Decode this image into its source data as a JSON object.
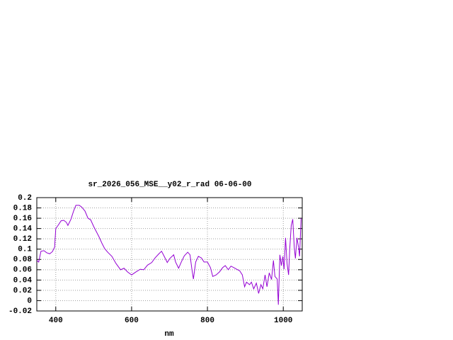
{
  "chart_data": {
    "type": "line",
    "title": "sr_2026_056_MSE__y02_r_rad 06-06-00",
    "xlabel": "nm",
    "xlim": [
      350,
      1050
    ],
    "ylim": [
      -0.02,
      0.2
    ],
    "xticks": [
      400,
      600,
      800,
      1000
    ],
    "yticks": [
      0.2,
      0.18,
      0.16,
      0.14,
      0.12,
      0.1,
      0.08,
      0.06,
      0.04,
      0.02,
      0,
      -0.02
    ],
    "grid": true,
    "series": [
      {
        "color": "#9400d3",
        "x": [
          350,
          355,
          361,
          369,
          376,
          384,
          391,
          397,
          400,
          406,
          414,
          421,
          428,
          432,
          440,
          447,
          453,
          462,
          468,
          477,
          485,
          492,
          500,
          507,
          514,
          522,
          529,
          537,
          548,
          559,
          571,
          580,
          589,
          600,
          612,
          623,
          632,
          642,
          653,
          662,
          672,
          679,
          686,
          694,
          701,
          711,
          716,
          724,
          731,
          739,
          748,
          754,
          759,
          763,
          769,
          776,
          784,
          791,
          800,
          808,
          814,
          823,
          832,
          840,
          847,
          855,
          862,
          870,
          877,
          885,
          892,
          898,
          903,
          911,
          916,
          922,
          929,
          935,
          941,
          946,
          952,
          957,
          963,
          969,
          974,
          978,
          984,
          987,
          991,
          995,
          999,
          1002,
          1006,
          1010,
          1014,
          1017,
          1021,
          1025,
          1029,
          1032,
          1036,
          1040,
          1043,
          1047
        ],
        "values": [
          0.078,
          0.075,
          0.096,
          0.097,
          0.093,
          0.091,
          0.095,
          0.104,
          0.14,
          0.146,
          0.155,
          0.156,
          0.152,
          0.146,
          0.158,
          0.174,
          0.185,
          0.185,
          0.182,
          0.174,
          0.16,
          0.157,
          0.144,
          0.134,
          0.124,
          0.111,
          0.101,
          0.094,
          0.086,
          0.072,
          0.06,
          0.063,
          0.056,
          0.05,
          0.056,
          0.061,
          0.06,
          0.069,
          0.074,
          0.083,
          0.091,
          0.096,
          0.086,
          0.074,
          0.082,
          0.089,
          0.075,
          0.063,
          0.075,
          0.087,
          0.094,
          0.089,
          0.061,
          0.042,
          0.075,
          0.086,
          0.083,
          0.075,
          0.075,
          0.064,
          0.047,
          0.05,
          0.056,
          0.064,
          0.068,
          0.06,
          0.067,
          0.064,
          0.061,
          0.058,
          0.05,
          0.027,
          0.036,
          0.031,
          0.036,
          0.023,
          0.034,
          0.014,
          0.031,
          0.023,
          0.05,
          0.027,
          0.054,
          0.041,
          0.078,
          0.047,
          0.042,
          -0.008,
          0.089,
          0.068,
          0.086,
          0.061,
          0.122,
          0.072,
          0.05,
          0.1,
          0.146,
          0.158,
          0.103,
          0.082,
          0.122,
          0.105,
          0.086,
          0.16
        ]
      }
    ]
  }
}
